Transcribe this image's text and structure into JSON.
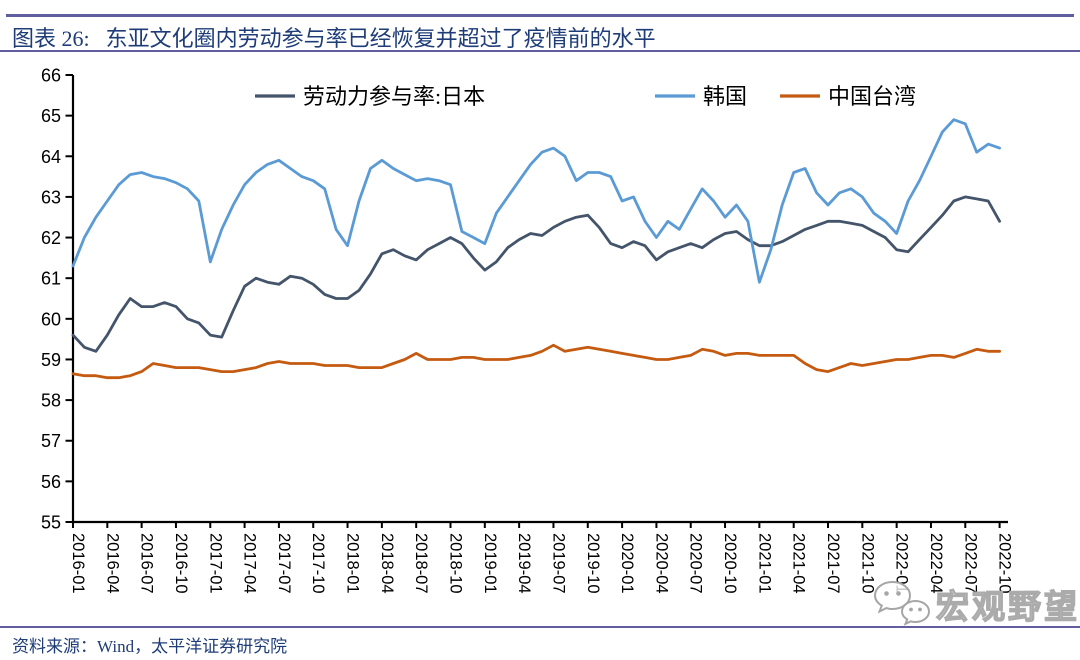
{
  "header": {
    "prefix": "图表 26:",
    "title": "东亚文化圈内劳动参与率已经恢复并超过了疫情前的水平"
  },
  "footer": {
    "source": "资料来源：Wind，太平洋证券研究院",
    "watermark": "宏观野望"
  },
  "colors": {
    "rule": "#605E9E",
    "title_text": "#1E3C78",
    "axis": "#000000",
    "japan": "#44546A",
    "korea": "#5B9BD5",
    "taiwan": "#C55A11",
    "watermark": "#ABABAB"
  },
  "chart_data": {
    "type": "line",
    "title": "东亚文化圈内劳动参与率已经恢复并超过了疫情前的水平",
    "xlabel": "",
    "ylabel": "",
    "ylim": [
      55,
      66
    ],
    "y_ticks": [
      55,
      56,
      57,
      58,
      59,
      60,
      61,
      62,
      63,
      64,
      65,
      66
    ],
    "frequency": "monthly",
    "x_start": "2016-01",
    "x_end": "2022-10",
    "x_tick_labels": [
      "2016-01",
      "2016-04",
      "2016-07",
      "2016-10",
      "2017-01",
      "2017-04",
      "2017-07",
      "2017-10",
      "2018-01",
      "2018-04",
      "2018-07",
      "2018-10",
      "2019-01",
      "2019-04",
      "2019-07",
      "2019-10",
      "2020-01",
      "2020-04",
      "2020-07",
      "2020-10",
      "2021-01",
      "2021-04",
      "2021-07",
      "2021-10",
      "2022-01",
      "2022-04",
      "2022-07",
      "2022-10"
    ],
    "grid": false,
    "legend_position": "top-center",
    "series": [
      {
        "name": "劳动力参与率:日本",
        "color": "#44546A",
        "values": [
          59.6,
          59.3,
          59.2,
          59.6,
          60.1,
          60.5,
          60.3,
          60.3,
          60.4,
          60.3,
          60.0,
          59.9,
          59.6,
          59.55,
          60.2,
          60.8,
          61.0,
          60.9,
          60.85,
          61.05,
          61.0,
          60.85,
          60.6,
          60.5,
          60.5,
          60.7,
          61.1,
          61.6,
          61.7,
          61.55,
          61.45,
          61.7,
          61.85,
          62.0,
          61.85,
          61.5,
          61.2,
          61.4,
          61.75,
          61.95,
          62.1,
          62.05,
          62.25,
          62.4,
          62.5,
          62.55,
          62.25,
          61.85,
          61.75,
          61.9,
          61.8,
          61.45,
          61.65,
          61.75,
          61.85,
          61.75,
          61.95,
          62.1,
          62.15,
          61.95,
          61.8,
          61.8,
          61.9,
          62.05,
          62.2,
          62.3,
          62.4,
          62.4,
          62.35,
          62.3,
          62.15,
          62.0,
          61.7,
          61.65,
          61.95,
          62.25,
          62.55,
          62.9,
          63.0,
          62.95,
          62.9,
          62.4
        ]
      },
      {
        "name": "韩国",
        "color": "#5B9BD5",
        "values": [
          61.3,
          62.0,
          62.5,
          62.9,
          63.3,
          63.55,
          63.6,
          63.5,
          63.45,
          63.35,
          63.2,
          62.9,
          61.4,
          62.2,
          62.8,
          63.3,
          63.6,
          63.8,
          63.9,
          63.7,
          63.5,
          63.4,
          63.2,
          62.2,
          61.8,
          62.9,
          63.7,
          63.9,
          63.7,
          63.55,
          63.4,
          63.45,
          63.4,
          63.3,
          62.15,
          62.0,
          61.85,
          62.6,
          63.0,
          63.4,
          63.8,
          64.1,
          64.2,
          64.0,
          63.4,
          63.6,
          63.6,
          63.5,
          62.9,
          63.0,
          62.4,
          62.0,
          62.4,
          62.2,
          62.7,
          63.2,
          62.9,
          62.5,
          62.8,
          62.4,
          60.9,
          61.7,
          62.8,
          63.6,
          63.7,
          63.1,
          62.8,
          63.1,
          63.2,
          63.0,
          62.6,
          62.4,
          62.1,
          62.9,
          63.4,
          64.0,
          64.6,
          64.9,
          64.8,
          64.1,
          64.3,
          64.2
        ]
      },
      {
        "name": "中国台湾",
        "color": "#C55A11",
        "values": [
          58.65,
          58.6,
          58.6,
          58.55,
          58.55,
          58.6,
          58.7,
          58.9,
          58.85,
          58.8,
          58.8,
          58.8,
          58.75,
          58.7,
          58.7,
          58.75,
          58.8,
          58.9,
          58.95,
          58.9,
          58.9,
          58.9,
          58.85,
          58.85,
          58.85,
          58.8,
          58.8,
          58.8,
          58.9,
          59.0,
          59.15,
          59.0,
          59.0,
          59.0,
          59.05,
          59.05,
          59.0,
          59.0,
          59.0,
          59.05,
          59.1,
          59.2,
          59.35,
          59.2,
          59.25,
          59.3,
          59.25,
          59.2,
          59.15,
          59.1,
          59.05,
          59.0,
          59.0,
          59.05,
          59.1,
          59.25,
          59.2,
          59.1,
          59.15,
          59.15,
          59.1,
          59.1,
          59.1,
          59.1,
          58.9,
          58.75,
          58.7,
          58.8,
          58.9,
          58.85,
          58.9,
          58.95,
          59.0,
          59.0,
          59.05,
          59.1,
          59.1,
          59.05,
          59.15,
          59.25,
          59.2,
          59.2
        ]
      }
    ]
  }
}
